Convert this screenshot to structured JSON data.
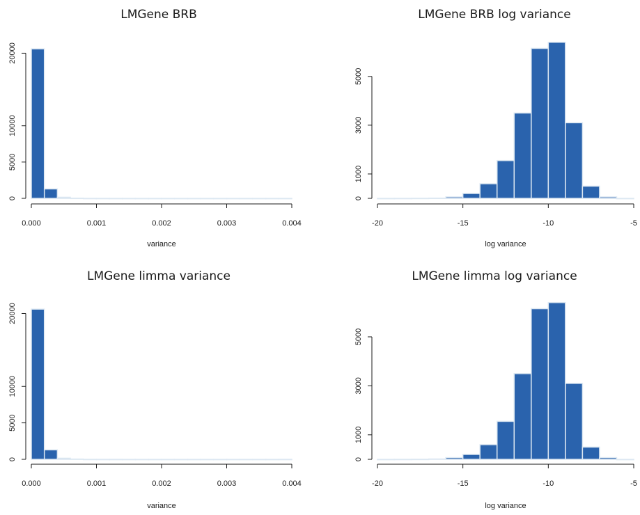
{
  "colors": {
    "bar_fill": "#2a63ad",
    "bar_edge": "#dde8f2",
    "axis": "#1a1a1a"
  },
  "chart_data": [
    {
      "type": "bar",
      "title": "LMGene BRB",
      "xlabel": "variance",
      "ylabel": "",
      "xlim": [
        0,
        0.004
      ],
      "xticks": [
        0,
        0.001,
        0.002,
        0.003,
        0.004
      ],
      "xtick_labels": [
        "0.000",
        "0.001",
        "0.002",
        "0.003",
        "0.004"
      ],
      "ylim": [
        0,
        21000
      ],
      "yticks": [
        0,
        5000,
        10000,
        20000
      ],
      "ytick_labels": [
        "0",
        "5000",
        "10000",
        "20000"
      ],
      "bin_edges": [
        0,
        0.0002,
        0.0004,
        0.0006,
        0.0008,
        0.001,
        0.0012,
        0.0014,
        0.0016,
        0.0018,
        0.002,
        0.0022,
        0.0024,
        0.0026,
        0.0028,
        0.003,
        0.0032,
        0.0034,
        0.0036,
        0.0038,
        0.004
      ],
      "values": [
        20600,
        1300,
        150,
        30,
        5,
        2,
        1,
        1,
        0,
        0,
        0,
        0,
        0,
        0,
        0,
        0,
        0,
        0,
        0,
        0
      ]
    },
    {
      "type": "bar",
      "title": "LMGene BRB log variance",
      "xlabel": "log variance",
      "ylabel": "",
      "xlim": [
        -20,
        -5
      ],
      "xticks": [
        -20,
        -15,
        -10,
        -5
      ],
      "xtick_labels": [
        "-20",
        "-15",
        "-10",
        "-5"
      ],
      "ylim": [
        0,
        6250
      ],
      "yticks": [
        0,
        1000,
        3000,
        5000
      ],
      "ytick_labels": [
        "0",
        "1000",
        "3000",
        "5000"
      ],
      "bin_edges": [
        -20,
        -19,
        -18,
        -17,
        -16,
        -15,
        -14,
        -13,
        -12,
        -11,
        -10,
        -9,
        -8,
        -7,
        -6,
        -5
      ],
      "values": [
        0,
        2,
        5,
        10,
        60,
        200,
        600,
        1550,
        3500,
        6150,
        6400,
        3100,
        500,
        60,
        0
      ]
    },
    {
      "type": "bar",
      "title": "LMGene limma variance",
      "xlabel": "variance",
      "ylabel": "",
      "xlim": [
        0,
        0.004
      ],
      "xticks": [
        0,
        0.001,
        0.002,
        0.003,
        0.004
      ],
      "xtick_labels": [
        "0.000",
        "0.001",
        "0.002",
        "0.003",
        "0.004"
      ],
      "ylim": [
        0,
        21000
      ],
      "yticks": [
        0,
        5000,
        10000,
        20000
      ],
      "ytick_labels": [
        "0",
        "5000",
        "10000",
        "20000"
      ],
      "bin_edges": [
        0,
        0.0002,
        0.0004,
        0.0006,
        0.0008,
        0.001,
        0.0012,
        0.0014,
        0.0016,
        0.0018,
        0.002,
        0.0022,
        0.0024,
        0.0026,
        0.0028,
        0.003,
        0.0032,
        0.0034,
        0.0036,
        0.0038,
        0.004
      ],
      "values": [
        20600,
        1300,
        150,
        40,
        8,
        3,
        2,
        1,
        1,
        0,
        0,
        0,
        0,
        0,
        0,
        0,
        0,
        0,
        0,
        2
      ]
    },
    {
      "type": "bar",
      "title": "LMGene limma log variance",
      "xlabel": "log variance",
      "ylabel": "",
      "xlim": [
        -20,
        -5
      ],
      "xticks": [
        -20,
        -15,
        -10,
        -5
      ],
      "xtick_labels": [
        "-20",
        "-15",
        "-10",
        "-5"
      ],
      "ylim": [
        0,
        6250
      ],
      "yticks": [
        0,
        1000,
        3000,
        5000
      ],
      "ytick_labels": [
        "0",
        "1000",
        "3000",
        "5000"
      ],
      "bin_edges": [
        -20,
        -19,
        -18,
        -17,
        -16,
        -15,
        -14,
        -13,
        -12,
        -11,
        -10,
        -9,
        -8,
        -7,
        -6,
        -5
      ],
      "values": [
        0,
        2,
        5,
        15,
        70,
        200,
        600,
        1550,
        3500,
        6150,
        6400,
        3100,
        500,
        70,
        0
      ]
    }
  ]
}
